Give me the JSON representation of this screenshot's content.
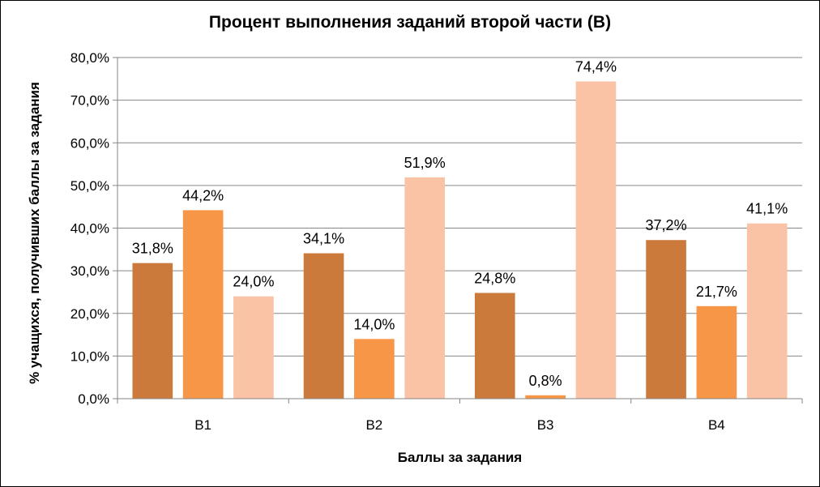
{
  "chart_data": {
    "type": "bar",
    "title": "Процент выполнения заданий второй части (В)",
    "xlabel": "Баллы за задания",
    "ylabel": "% учащихся, получивших баллы за задания",
    "categories": [
      "B1",
      "B2",
      "B3",
      "B4"
    ],
    "ylim": [
      0,
      80
    ],
    "yticks": [
      "0,0%",
      "10,0%",
      "20,0%",
      "30,0%",
      "40,0%",
      "50,0%",
      "60,0%",
      "70,0%",
      "80,0%"
    ],
    "grid": true,
    "legend": "none",
    "series": [
      {
        "color": "#cc7a3c",
        "values": [
          31.8,
          34.1,
          24.8,
          37.2
        ],
        "labels": [
          "31,8%",
          "34,1%",
          "24,8%",
          "37,2%"
        ]
      },
      {
        "color": "#f79646",
        "values": [
          44.2,
          14.0,
          0.8,
          21.7
        ],
        "labels": [
          "44,2%",
          "14,0%",
          "0,8%",
          "21,7%"
        ]
      },
      {
        "color": "#fac3a5",
        "values": [
          24.0,
          51.9,
          74.4,
          41.1
        ],
        "labels": [
          "24,0%",
          "51,9%",
          "74,4%",
          "41,1%"
        ]
      }
    ]
  }
}
